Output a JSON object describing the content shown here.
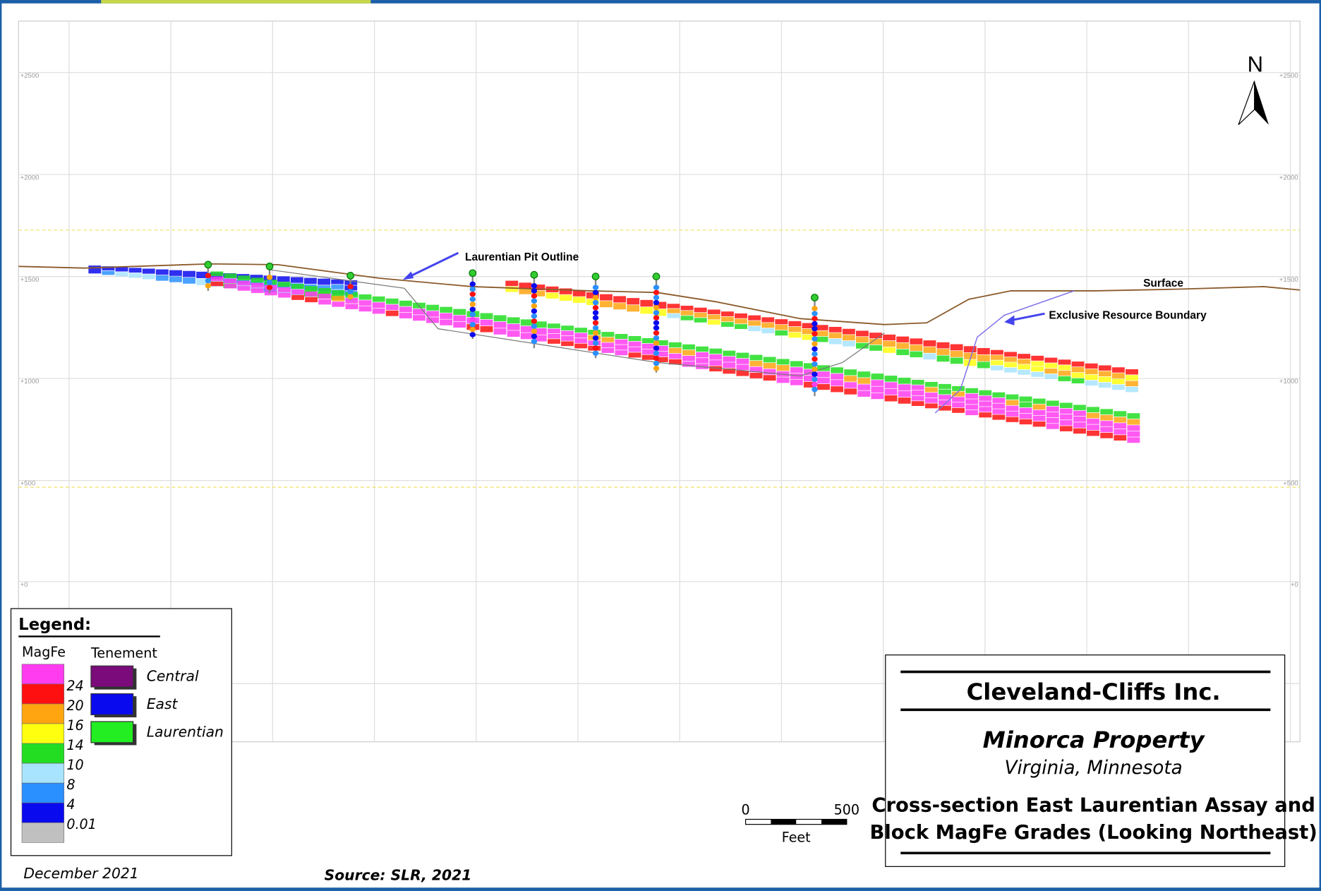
{
  "elevation_labels": [
    "+2500",
    "+2000",
    "+1500",
    "+1000",
    "+500",
    "+0"
  ],
  "annotations": {
    "pit_outline": "Laurentian Pit Outline",
    "surface": "Surface",
    "resource_boundary": "Exclusive Resource Boundary",
    "north": "N"
  },
  "legend": {
    "title": "Legend:",
    "magfe_title": "MagFe",
    "magfe_breaks": [
      "24",
      "20",
      "16",
      "14",
      "10",
      "8",
      "4",
      "0.01"
    ],
    "magfe_colors": [
      "#ff3cf0",
      "#ff1010",
      "#ffa510",
      "#ffff10",
      "#22dd22",
      "#a8e4ff",
      "#2a90ff",
      "#0a0aee",
      "#c0c0c0"
    ],
    "tenement_title": "Tenement",
    "tenements": [
      {
        "name": "Central",
        "color": "#7b0a7b"
      },
      {
        "name": "East",
        "color": "#0a0aee"
      },
      {
        "name": "Laurentian",
        "color": "#22ee22"
      }
    ]
  },
  "title_block": {
    "company": "Cleveland-Cliffs Inc.",
    "property": "Minorca Property",
    "location": "Virginia, Minnesota",
    "subtitle_lines": [
      "Cross-section East Laurentian Assay and",
      "Block MagFe Grades (Looking Northeast)"
    ]
  },
  "scale_bar": {
    "start": "0",
    "end": "500",
    "unit": "Feet"
  },
  "footer": {
    "date": "December 2021",
    "source": "Source: SLR, 2021"
  }
}
